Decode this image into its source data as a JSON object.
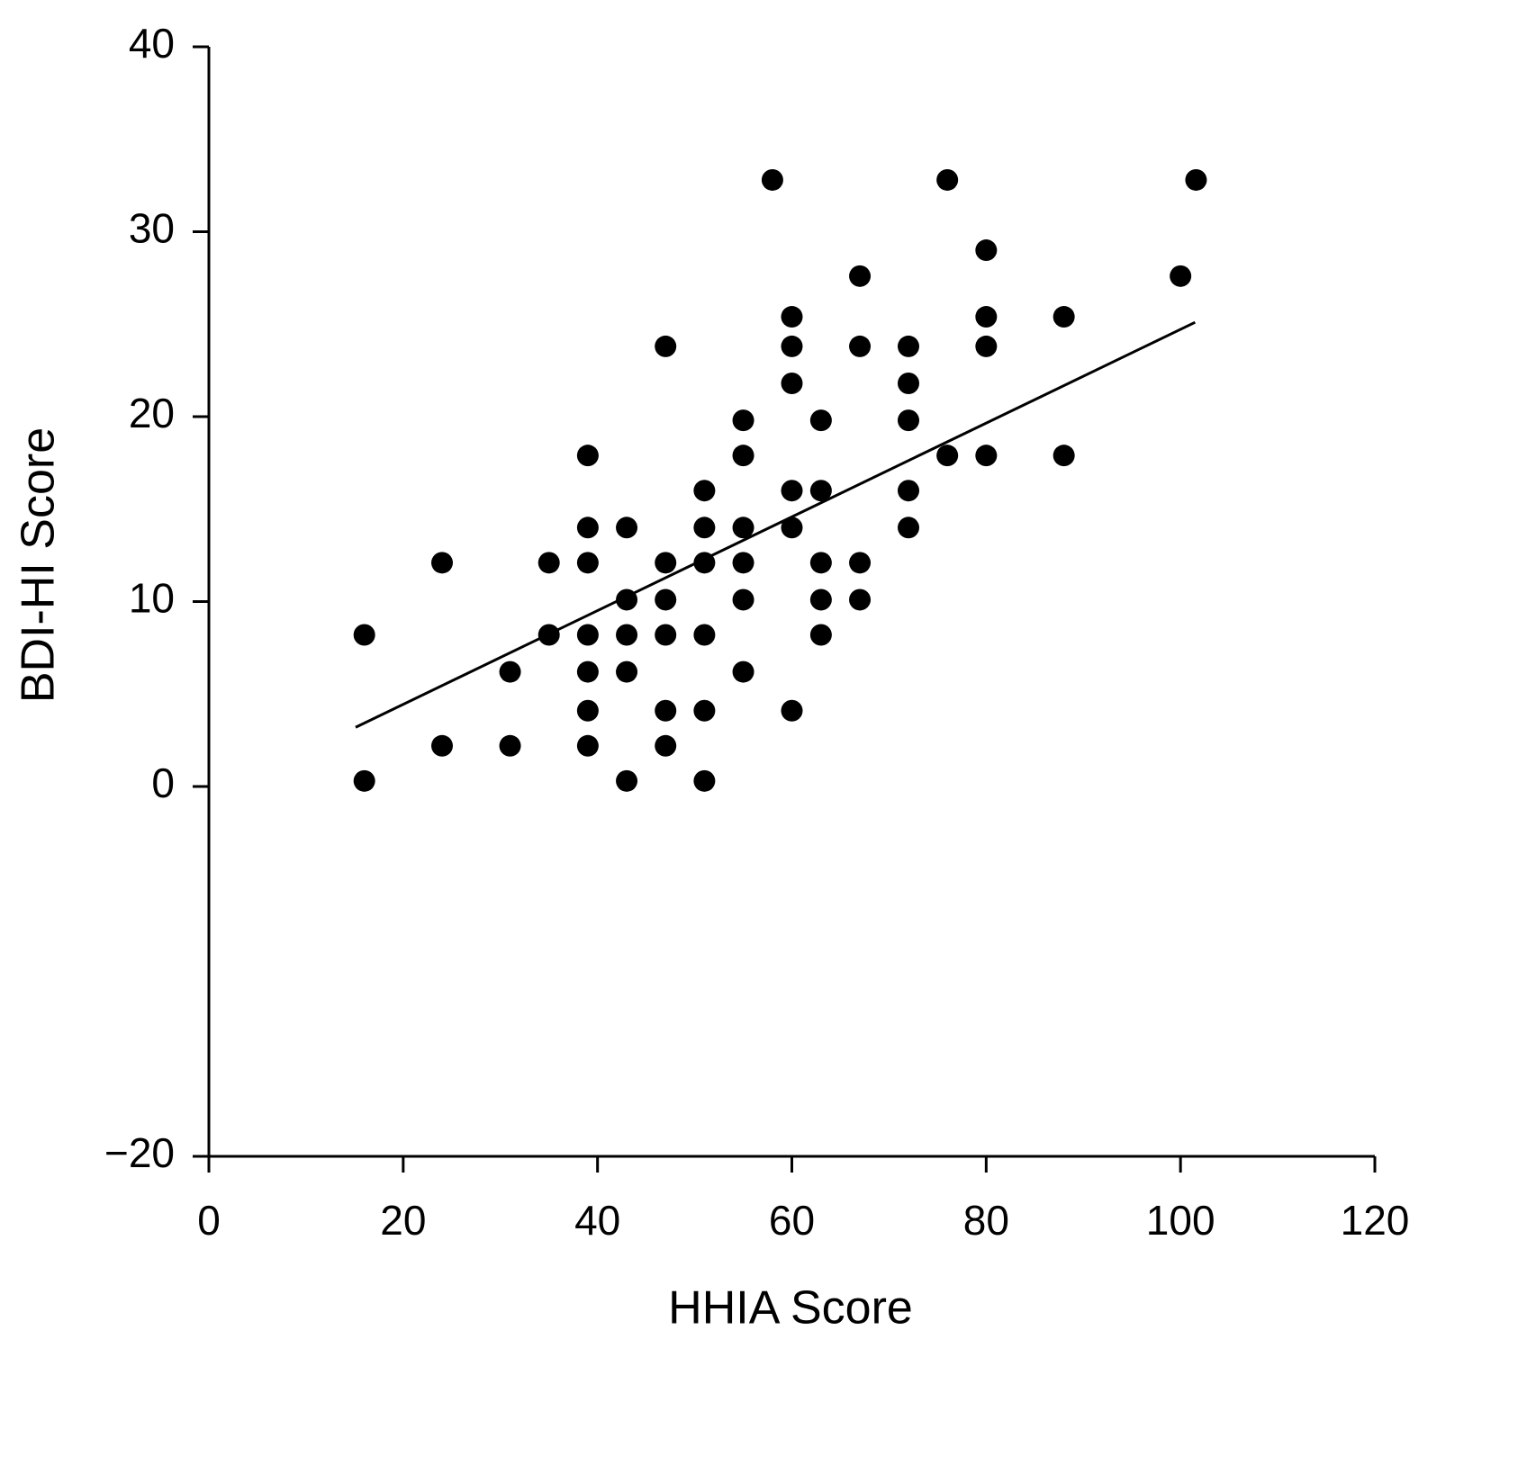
{
  "chart_data": {
    "type": "scatter",
    "x_label": "HHIA Score",
    "y_label": "BDI-HI Score",
    "color": "#000000",
    "x": [
      16,
      16,
      24,
      24,
      31,
      31,
      35,
      35,
      39,
      39,
      39,
      39,
      39,
      39,
      39,
      43,
      43,
      43,
      43,
      43,
      47,
      47,
      47,
      47,
      47,
      47,
      51,
      51,
      51,
      51,
      51,
      51,
      55,
      55,
      55,
      55,
      55,
      55,
      58,
      60,
      60,
      60,
      60,
      60,
      60,
      63,
      63,
      63,
      63,
      63,
      67,
      67,
      67,
      67,
      72,
      72,
      72,
      72,
      72,
      76,
      76,
      80,
      80,
      80,
      80,
      88,
      88,
      100,
      101.6
    ],
    "values": [
      8.2,
      0.3,
      12.1,
      2.2,
      6.2,
      2.2,
      12.1,
      8.2,
      17.9,
      14,
      12.1,
      8.2,
      6.2,
      4.1,
      2.2,
      14,
      10.1,
      8.2,
      6.2,
      0.3,
      23.8,
      12.1,
      10.1,
      8.2,
      4.1,
      2.2,
      16,
      14,
      12.1,
      8.2,
      4.1,
      0.3,
      19.8,
      17.9,
      14,
      12.1,
      10.1,
      6.2,
      32.8,
      25.4,
      23.8,
      21.8,
      16,
      14,
      4.1,
      19.8,
      16,
      12.1,
      10.1,
      8.2,
      27.6,
      23.8,
      12.1,
      10.1,
      23.8,
      21.8,
      19.8,
      16,
      14,
      32.8,
      17.9,
      29,
      25.4,
      23.8,
      17.9,
      25.4,
      17.9,
      27.6,
      32.8
    ],
    "trendline": {
      "x": [
        15.1,
        101.5
      ],
      "y": [
        3.2,
        25.1
      ]
    },
    "xlim": [
      0,
      120
    ],
    "xticks": [
      0,
      20,
      40,
      60,
      80,
      100,
      120
    ],
    "ylim": [
      -20,
      40
    ],
    "yticks": [
      {
        "value": -20,
        "label": "−20"
      },
      0,
      10,
      20,
      30,
      40
    ],
    "grid": false
  }
}
